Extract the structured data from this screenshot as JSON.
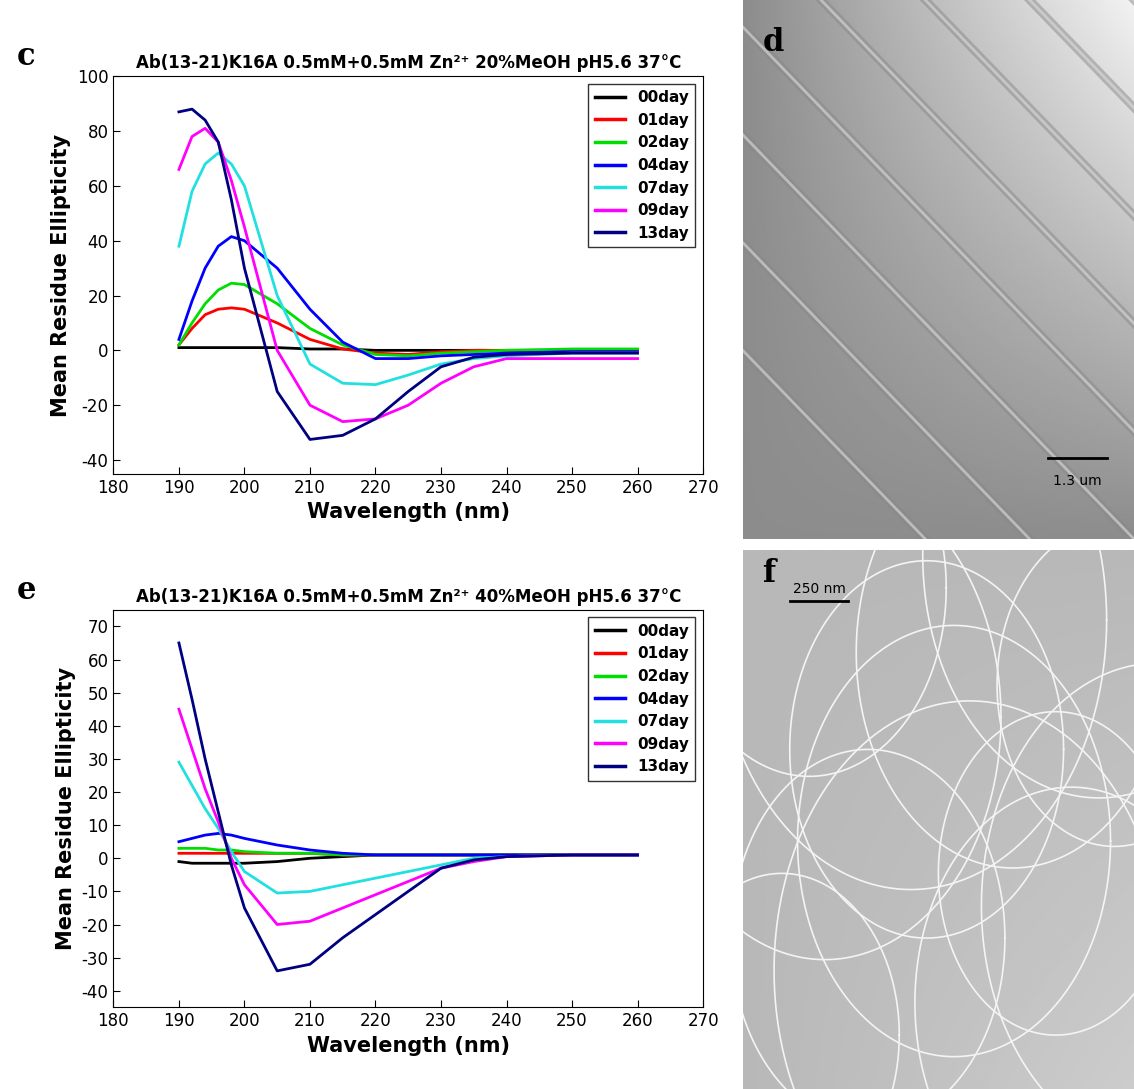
{
  "chart_data": [
    {
      "type": "line",
      "annotation": "c",
      "title": "Ab(13-21)K16A 0.5mM+0.5mM Zn²⁺ 20%MeOH pH5.6 37°C",
      "x_label": "Wavelength (nm)",
      "y_label": "Mean Residue Ellipticity",
      "x": [
        190,
        192,
        194,
        196,
        198,
        200,
        205,
        210,
        215,
        220,
        225,
        230,
        235,
        240,
        250,
        260
      ],
      "xlim": [
        180,
        270
      ],
      "xticks": [
        180,
        190,
        200,
        210,
        220,
        230,
        240,
        250,
        260,
        270
      ],
      "ylim": [
        -45,
        100
      ],
      "yticks": [
        -40,
        -20,
        0,
        20,
        40,
        60,
        80,
        100
      ],
      "legend": "upper right",
      "series": [
        {
          "name": "00day",
          "color": "#000000",
          "values": [
            1,
            1,
            1,
            1,
            1,
            1,
            1,
            0.5,
            0.5,
            0,
            0,
            0,
            0,
            0,
            0,
            0
          ]
        },
        {
          "name": "01day",
          "color": "#ff0000",
          "values": [
            2,
            8,
            13,
            15,
            15.5,
            15,
            10,
            4,
            0.5,
            -1,
            -1.5,
            -0.5,
            0,
            0,
            0,
            0
          ]
        },
        {
          "name": "02day",
          "color": "#00dd00",
          "values": [
            2,
            10,
            17,
            22,
            24.5,
            24,
            17,
            8,
            2,
            -1.5,
            -2,
            -1,
            -0.5,
            0,
            0.5,
            0.5
          ]
        },
        {
          "name": "04day",
          "color": "#0000ff",
          "values": [
            4,
            18,
            30,
            38,
            41.5,
            40,
            30,
            15,
            3,
            -3,
            -3,
            -2,
            -1.5,
            -1,
            -0.5,
            -0.5
          ]
        },
        {
          "name": "07day",
          "color": "#22e0e0",
          "values": [
            38,
            58,
            68,
            72,
            68,
            60,
            20,
            -5,
            -12,
            -12.5,
            -9,
            -5,
            -3,
            -2,
            -1,
            -1
          ]
        },
        {
          "name": "09day",
          "color": "#ff00ff",
          "values": [
            66,
            78,
            81,
            76,
            62,
            45,
            0,
            -20,
            -26,
            -25,
            -20,
            -12,
            -6,
            -3,
            -3,
            -3
          ]
        },
        {
          "name": "13day",
          "color": "#000080",
          "values": [
            87,
            88,
            84,
            76,
            55,
            30,
            -15,
            -32.5,
            -31,
            -25,
            -15,
            -6,
            -2.5,
            -1.5,
            -1,
            -1
          ]
        }
      ]
    },
    {
      "type": "line",
      "annotation": "e",
      "title": "Ab(13-21)K16A 0.5mM+0.5mM Zn²⁺ 40%MeOH pH5.6 37°C",
      "x_label": "Wavelength (nm)",
      "y_label": "Mean Residue Ellipticity",
      "x": [
        190,
        192,
        194,
        196,
        198,
        200,
        205,
        210,
        215,
        220,
        225,
        230,
        235,
        240,
        250,
        260
      ],
      "xlim": [
        180,
        270
      ],
      "xticks": [
        180,
        190,
        200,
        210,
        220,
        230,
        240,
        250,
        260,
        270
      ],
      "ylim": [
        -45,
        75
      ],
      "yticks": [
        -40,
        -30,
        -20,
        -10,
        0,
        10,
        20,
        30,
        40,
        50,
        60,
        70
      ],
      "legend": "upper right",
      "series": [
        {
          "name": "00day",
          "color": "#000000",
          "values": [
            -1,
            -1.5,
            -1.5,
            -1.5,
            -1.5,
            -1.5,
            -1,
            0,
            0.5,
            1,
            1,
            1,
            1,
            1,
            1,
            1
          ]
        },
        {
          "name": "01day",
          "color": "#ff0000",
          "values": [
            1.5,
            1.5,
            1.5,
            1.5,
            1.5,
            1.5,
            1.5,
            1.5,
            1,
            1,
            1,
            1,
            1,
            1,
            1,
            1
          ]
        },
        {
          "name": "02day",
          "color": "#00dd00",
          "values": [
            3,
            3,
            3,
            2.5,
            2.5,
            2,
            1.5,
            1.5,
            1,
            1,
            1,
            1,
            1,
            1,
            1,
            1
          ]
        },
        {
          "name": "04day",
          "color": "#0000ff",
          "values": [
            5,
            6,
            7,
            7.5,
            7,
            6,
            4,
            2.5,
            1.5,
            1,
            1,
            1,
            1,
            1,
            1,
            1
          ]
        },
        {
          "name": "07day",
          "color": "#22e0e0",
          "values": [
            29,
            22,
            15,
            9,
            2,
            -4,
            -10.5,
            -10,
            -8,
            -6,
            -4,
            -2,
            0,
            0.5,
            1,
            1
          ]
        },
        {
          "name": "09day",
          "color": "#ff00ff",
          "values": [
            45,
            33,
            21,
            11,
            0,
            -8,
            -20,
            -19,
            -15,
            -11,
            -7,
            -3,
            -1,
            0.5,
            1,
            1
          ]
        },
        {
          "name": "13day",
          "color": "#000080",
          "values": [
            65,
            48,
            30,
            14,
            -2,
            -15,
            -34,
            -32,
            -24,
            -17,
            -10,
            -3,
            -0.5,
            0.5,
            1,
            1
          ]
        }
      ]
    }
  ],
  "images": [
    {
      "annotation": "d",
      "scale_bar": "1.3 um"
    },
    {
      "annotation": "f",
      "scale_bar": "250 nm"
    }
  ]
}
